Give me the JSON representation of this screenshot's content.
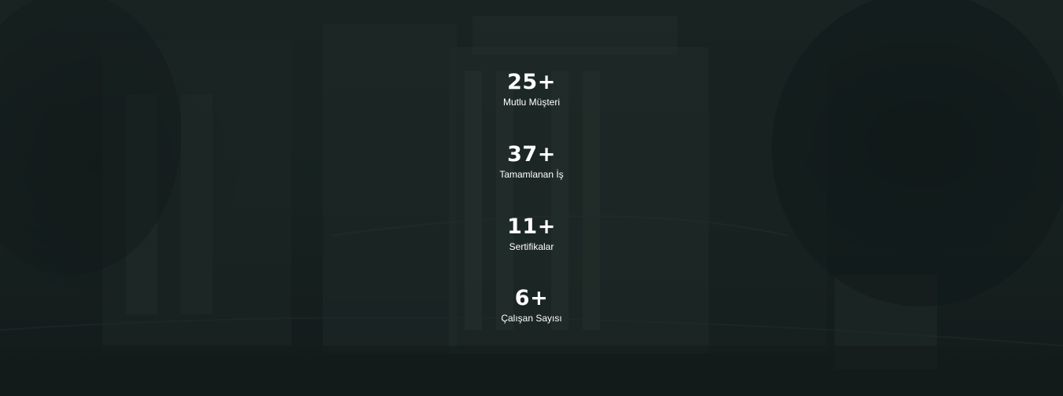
{
  "colors": {
    "background_tint": "#182321",
    "text": "#ffffff"
  },
  "stats": [
    {
      "value": "25+",
      "label": "Mutlu Müşteri"
    },
    {
      "value": "37+",
      "label": "Tamamlanan İş"
    },
    {
      "value": "11+",
      "label": "Sertifikalar"
    },
    {
      "value": "6+",
      "label": "Çalışan Sayısı"
    }
  ]
}
